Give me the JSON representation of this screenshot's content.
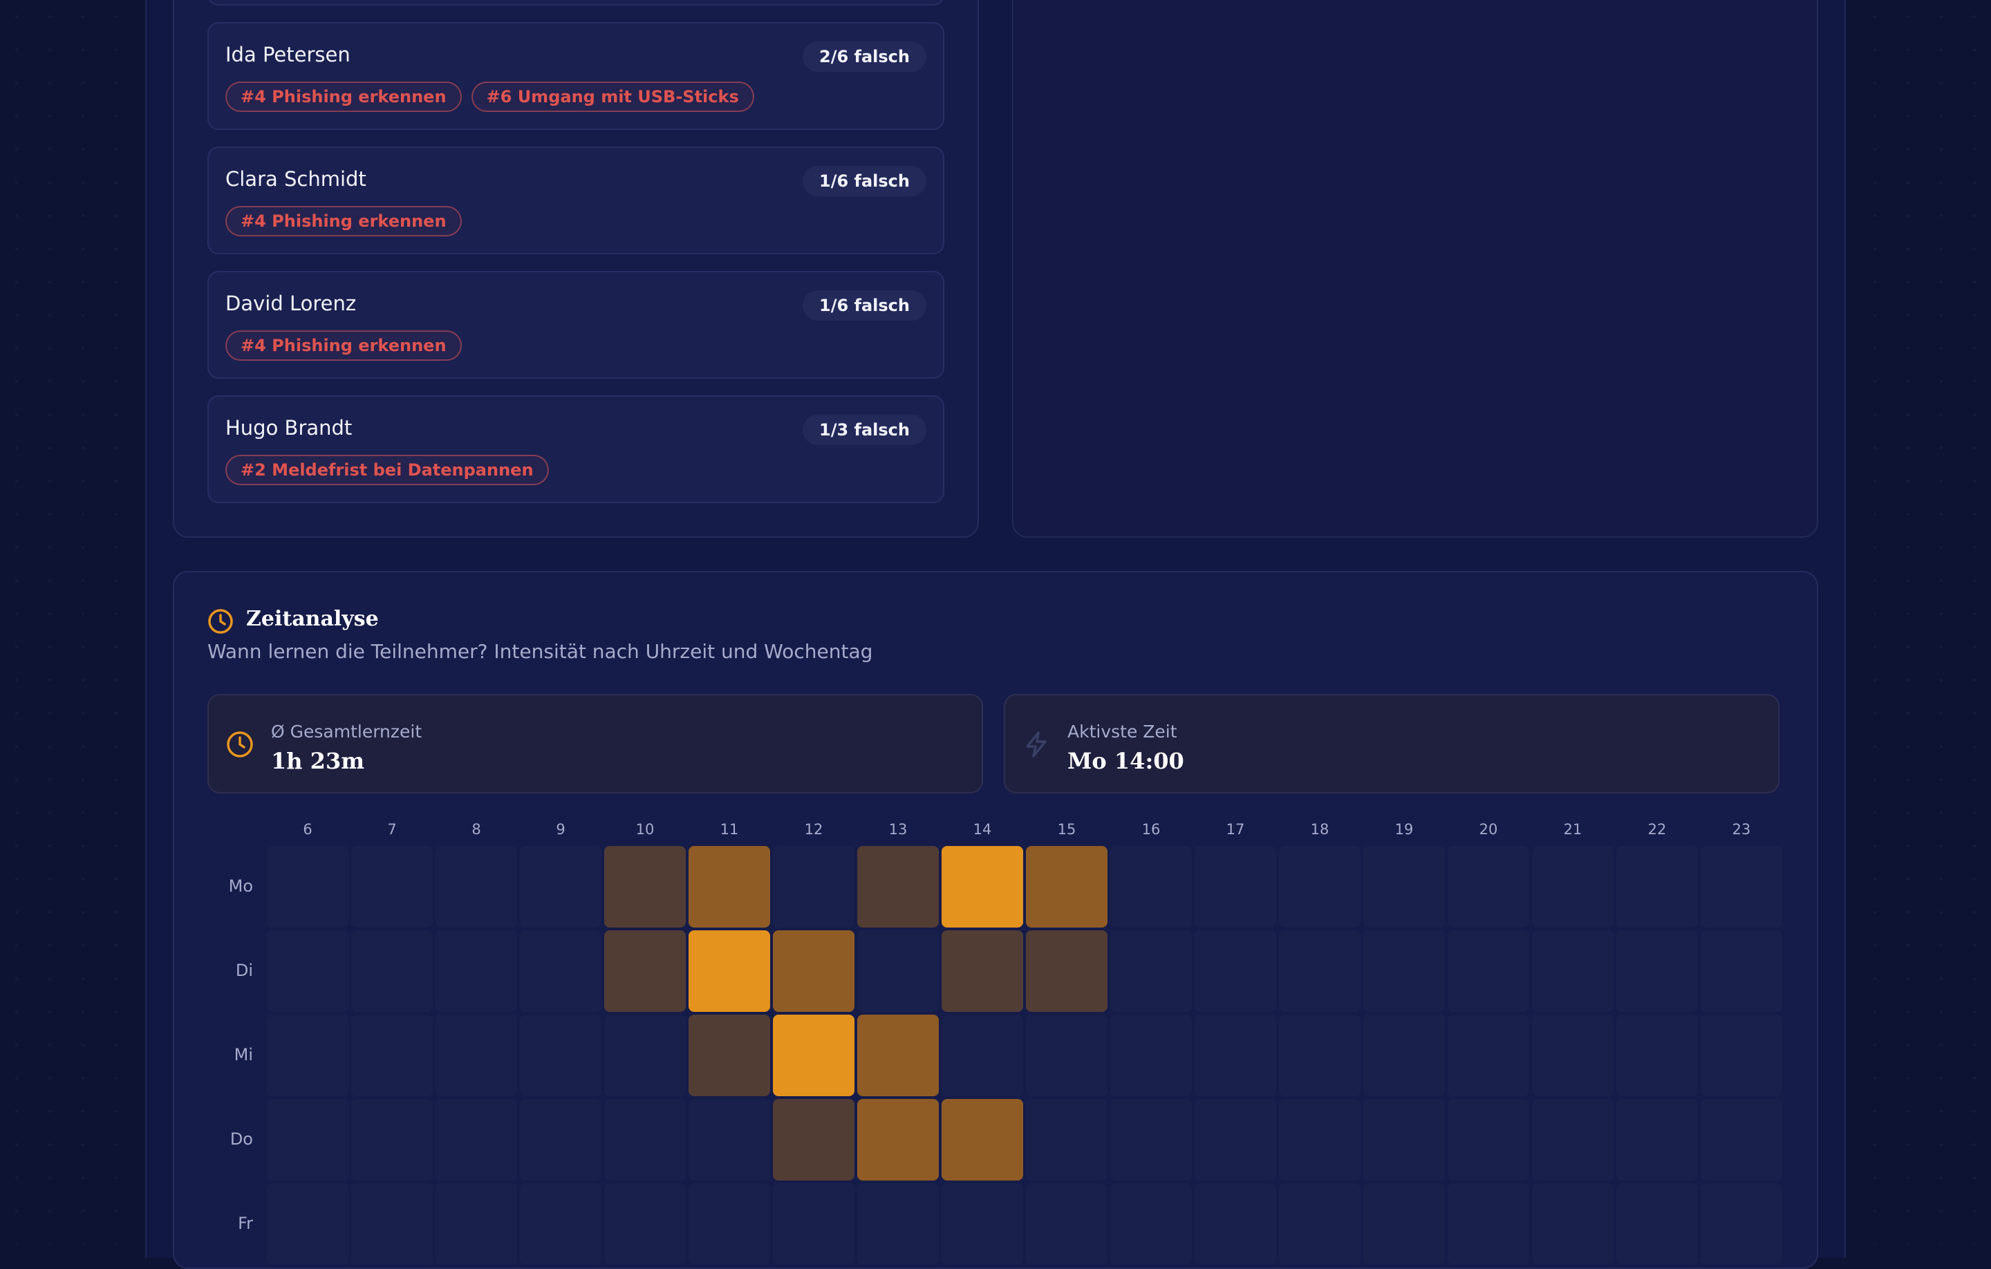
{
  "wrong_answers": [
    {
      "name": "Ida Petersen",
      "count": "2/6 falsch",
      "tags": [
        "#4 Phishing erkennen",
        "#6 Umgang mit USB-Sticks"
      ]
    },
    {
      "name": "Clara Schmidt",
      "count": "1/6 falsch",
      "tags": [
        "#4 Phishing erkennen"
      ]
    },
    {
      "name": "David Lorenz",
      "count": "1/6 falsch",
      "tags": [
        "#4 Phishing erkennen"
      ]
    },
    {
      "name": "Hugo Brandt",
      "count": "1/3 falsch",
      "tags": [
        "#2 Meldefrist bei Datenpannen"
      ]
    }
  ],
  "time_analysis": {
    "icon": "clock-icon",
    "title": "Zeitanalyse",
    "subtitle": "Wann lernen die Teilnehmer? Intensität nach Uhrzeit und Wochentag",
    "stats": [
      {
        "icon": "clock-icon",
        "label": "Ø Gesamtlernzeit",
        "value": "1h 23m"
      },
      {
        "icon": "lightning-icon",
        "label": "Aktivste Zeit",
        "value": "Mo 14:00"
      }
    ],
    "accent_color": "#e8961e",
    "heatmap": {
      "hours": [
        "6",
        "7",
        "8",
        "9",
        "10",
        "11",
        "12",
        "13",
        "14",
        "15",
        "16",
        "17",
        "18",
        "19",
        "20",
        "21",
        "22",
        "23"
      ],
      "days": [
        "Mo",
        "Di",
        "Mi",
        "Do",
        "Fr"
      ],
      "levels": [
        [
          0,
          0,
          0,
          0,
          1,
          2,
          0,
          1,
          3,
          2,
          0,
          0,
          0,
          0,
          0,
          0,
          0,
          0
        ],
        [
          0,
          0,
          0,
          0,
          1,
          3,
          2,
          0,
          1,
          1,
          0,
          0,
          0,
          0,
          0,
          0,
          0,
          0
        ],
        [
          0,
          0,
          0,
          0,
          0,
          1,
          3,
          2,
          0,
          0,
          0,
          0,
          0,
          0,
          0,
          0,
          0,
          0
        ],
        [
          0,
          0,
          0,
          0,
          0,
          0,
          1,
          2,
          2,
          0,
          0,
          0,
          0,
          0,
          0,
          0,
          0,
          0
        ],
        [
          0,
          0,
          0,
          0,
          0,
          0,
          0,
          0,
          0,
          0,
          0,
          0,
          0,
          0,
          0,
          0,
          0,
          0
        ]
      ]
    }
  }
}
